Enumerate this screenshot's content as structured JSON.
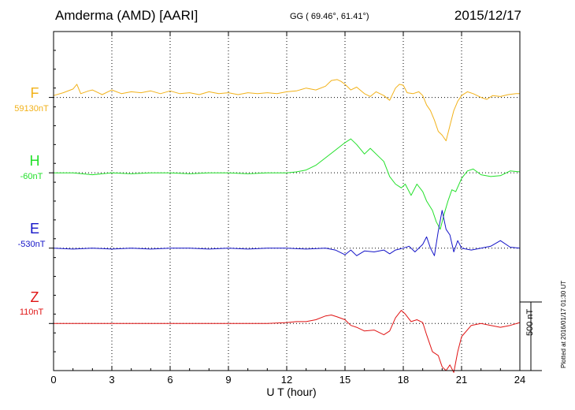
{
  "header": {
    "station": "Amderma (AMD)  [AARI]",
    "coords": "GG ( 69.46°,  61.41°)",
    "date": "2015/12/17"
  },
  "footer": {
    "xlabel": "U T (hour)",
    "scale_label": "500 nT",
    "plotted": "Plotted at 2016/01/17 01:30 UT"
  },
  "colors": {
    "F": "#f2b21a",
    "H": "#22e02a",
    "E": "#1414c8",
    "Z": "#e01414"
  },
  "chart_data": {
    "type": "line",
    "title": "Amderma (AMD)  [AARI]",
    "xlabel": "U T (hour)",
    "xlim": [
      0,
      24
    ],
    "xticks": [
      0,
      3,
      6,
      9,
      12,
      15,
      18,
      21,
      24
    ],
    "ylim": [
      -400,
      1400
    ],
    "scale_bar_nT": 500,
    "grid": true,
    "series": [
      {
        "name": "F",
        "baseline_label": "59130nT",
        "offset_nT": 1050,
        "x": [
          0,
          0.5,
          1,
          1.2,
          1.4,
          1.8,
          2,
          2.5,
          3,
          3.5,
          4,
          4.5,
          5,
          5.5,
          6,
          6.5,
          7,
          7.5,
          8,
          8.5,
          9,
          9.5,
          10,
          10.5,
          11,
          11.5,
          12,
          12.5,
          13,
          13.5,
          14,
          14.3,
          14.6,
          14.8,
          15,
          15.3,
          15.6,
          16,
          16.3,
          16.6,
          17,
          17.3,
          17.6,
          17.8,
          18,
          18.2,
          18.5,
          18.8,
          19,
          19.2,
          19.4,
          19.6,
          19.8,
          20,
          20.2,
          20.4,
          20.6,
          20.8,
          21,
          21.3,
          21.6,
          22,
          22.3,
          22.6,
          23,
          23.4,
          23.8,
          24
        ],
        "values": [
          10,
          25,
          45,
          70,
          20,
          35,
          40,
          15,
          40,
          20,
          30,
          25,
          35,
          20,
          35,
          20,
          25,
          15,
          30,
          20,
          25,
          15,
          25,
          20,
          25,
          20,
          30,
          35,
          50,
          40,
          60,
          90,
          95,
          85,
          70,
          40,
          55,
          20,
          5,
          30,
          10,
          -15,
          50,
          70,
          65,
          25,
          20,
          30,
          10,
          -40,
          -70,
          -120,
          -180,
          -200,
          -230,
          -150,
          -70,
          -20,
          10,
          30,
          20,
          0,
          -10,
          10,
          5,
          15,
          20,
          20
        ]
      },
      {
        "name": "H",
        "baseline_label": "-60nT",
        "offset_nT": 650,
        "x": [
          0,
          1,
          2,
          3,
          4,
          5,
          6,
          7,
          8,
          9,
          10,
          11,
          12,
          12.5,
          13,
          13.5,
          14,
          14.5,
          15,
          15.3,
          15.6,
          16,
          16.3,
          16.7,
          17,
          17.3,
          17.6,
          17.9,
          18.1,
          18.4,
          18.7,
          19,
          19.2,
          19.5,
          19.7,
          19.9,
          20.1,
          20.3,
          20.5,
          20.7,
          21,
          21.3,
          21.6,
          22,
          22.5,
          23,
          23.5,
          24
        ],
        "values": [
          0,
          0,
          -10,
          0,
          -5,
          0,
          0,
          -5,
          0,
          0,
          -5,
          0,
          0,
          5,
          15,
          40,
          80,
          120,
          160,
          180,
          150,
          100,
          130,
          90,
          60,
          -20,
          -60,
          -80,
          -60,
          -120,
          -60,
          -100,
          -150,
          -200,
          -260,
          -300,
          -220,
          -150,
          -90,
          -100,
          -30,
          10,
          20,
          -10,
          -20,
          -15,
          10,
          5
        ]
      },
      {
        "name": "E",
        "baseline_label": "-530nT",
        "offset_nT": 250,
        "x": [
          0,
          1,
          2,
          3,
          4,
          5,
          6,
          7,
          8,
          9,
          10,
          11,
          12,
          13,
          14,
          14.5,
          15,
          15.3,
          15.6,
          16,
          16.5,
          17,
          17.3,
          17.6,
          18,
          18.3,
          18.6,
          19,
          19.2,
          19.4,
          19.6,
          19.8,
          20,
          20.2,
          20.4,
          20.6,
          20.8,
          21,
          21.5,
          22,
          22.5,
          23,
          23.5,
          24
        ],
        "values": [
          0,
          -5,
          0,
          -5,
          0,
          -5,
          0,
          0,
          -5,
          0,
          -5,
          0,
          0,
          -5,
          0,
          -10,
          -35,
          -10,
          -40,
          -15,
          -20,
          -10,
          -30,
          -10,
          0,
          10,
          -20,
          20,
          60,
          0,
          -40,
          90,
          200,
          100,
          70,
          -20,
          40,
          0,
          -10,
          0,
          10,
          40,
          5,
          0
        ]
      },
      {
        "name": "Z",
        "baseline_label": "110nT",
        "offset_nT": -150,
        "x": [
          0,
          1,
          2,
          3,
          4,
          5,
          6,
          7,
          8,
          9,
          10,
          11,
          12,
          12.5,
          13,
          13.5,
          14,
          14.3,
          14.6,
          15,
          15.3,
          15.6,
          16,
          16.5,
          17,
          17.3,
          17.6,
          17.9,
          18.1,
          18.4,
          18.7,
          19,
          19.2,
          19.5,
          19.8,
          20,
          20.2,
          20.4,
          20.6,
          20.8,
          21,
          21.5,
          22,
          22.5,
          23,
          23.5,
          24
        ],
        "values": [
          0,
          0,
          0,
          0,
          0,
          0,
          0,
          0,
          0,
          0,
          0,
          0,
          5,
          10,
          10,
          20,
          40,
          45,
          35,
          20,
          -10,
          -20,
          -40,
          -35,
          -60,
          -40,
          30,
          70,
          50,
          10,
          20,
          5,
          -60,
          -150,
          -170,
          -230,
          -250,
          -220,
          -260,
          -150,
          -70,
          -10,
          0,
          -10,
          -20,
          -10,
          5
        ]
      }
    ]
  }
}
